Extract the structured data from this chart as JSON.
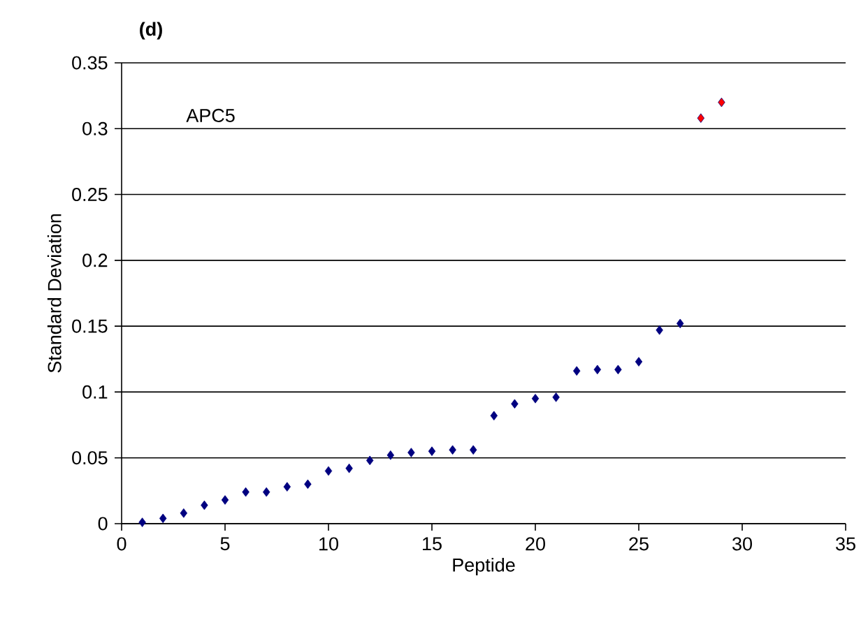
{
  "chart_data": {
    "type": "scatter",
    "title": "(d)",
    "xlabel": "Peptide",
    "ylabel": "Standard Deviation",
    "annotations": [
      "APC5"
    ],
    "xlim": [
      0,
      35
    ],
    "xticks": [
      0,
      5,
      10,
      15,
      20,
      25,
      30,
      35
    ],
    "ylim": [
      0,
      0.35
    ],
    "yticks": [
      0,
      0.05,
      0.1,
      0.15,
      0.2,
      0.25,
      0.3,
      0.35
    ],
    "grid": "y",
    "marker": "diamond",
    "series": [
      {
        "color": "#000080",
        "x": [
          1,
          2,
          3,
          4,
          5,
          6,
          7,
          8,
          9,
          10,
          11,
          12,
          13,
          14,
          15,
          16,
          17,
          18,
          19,
          20,
          21,
          22,
          23,
          24,
          25,
          26,
          27
        ],
        "values": [
          0.001,
          0.004,
          0.008,
          0.014,
          0.018,
          0.024,
          0.024,
          0.028,
          0.03,
          0.04,
          0.042,
          0.048,
          0.052,
          0.054,
          0.055,
          0.056,
          0.056,
          0.082,
          0.091,
          0.095,
          0.096,
          0.116,
          0.117,
          0.117,
          0.123,
          0.147,
          0.152
        ]
      },
      {
        "color": "#ff0000",
        "x": [
          28,
          29
        ],
        "values": [
          0.308,
          0.32
        ]
      }
    ]
  }
}
